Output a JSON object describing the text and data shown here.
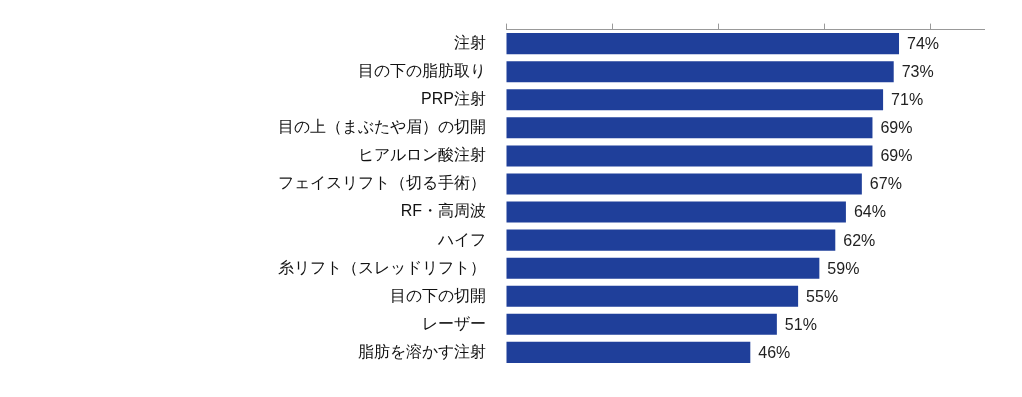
{
  "chart_data": {
    "type": "bar",
    "orientation": "horizontal",
    "categories": [
      "注射",
      "目の下の脂肪取り",
      "PRP注射",
      "目の上（まぶたや眉）の切開",
      "ヒアルロン酸注射",
      "フェイスリフト（切る手術）",
      "RF・高周波",
      "ハイフ",
      "糸リフト（スレッドリフト）",
      "目の下の切開",
      "レーザー",
      "脂肪を溶かす注射"
    ],
    "values": [
      74,
      73,
      71,
      69,
      69,
      67,
      64,
      62,
      59,
      55,
      51,
      46
    ],
    "value_labels": [
      "74%",
      "73%",
      "71%",
      "69%",
      "69%",
      "67%",
      "64%",
      "62%",
      "59%",
      "55%",
      "51%",
      "46%"
    ],
    "color": "#1f3f9a",
    "xlim": [
      0,
      90
    ],
    "xticks": [
      {
        "value": 0,
        "label": null
      },
      {
        "value": 20,
        "label": null
      },
      {
        "value": 40,
        "label": null
      },
      {
        "value": 60,
        "label": null
      },
      {
        "value": 80,
        "label": null
      }
    ],
    "tick_labels": "y",
    "grid": false,
    "legend": false
  }
}
